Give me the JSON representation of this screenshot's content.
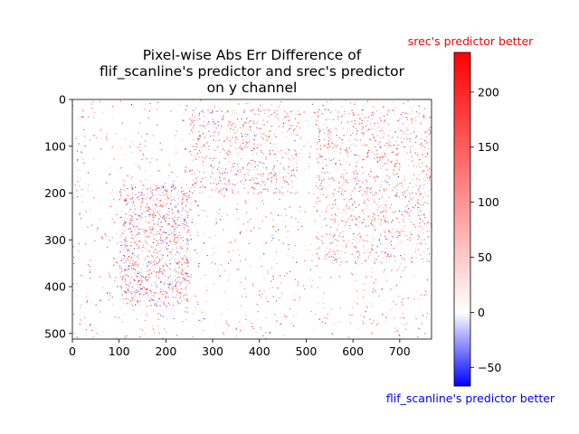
{
  "chart_data": {
    "type": "heatmap",
    "title_lines": [
      "Pixel-wise Abs Err Difference of",
      "flif_scanline's predictor and srec's predictor",
      "on y channel"
    ],
    "image": {
      "x_range": [
        0,
        768
      ],
      "y_range": [
        0,
        512
      ],
      "x_ticks": [
        0,
        100,
        200,
        300,
        400,
        500,
        600,
        700
      ],
      "y_ticks": [
        0,
        100,
        200,
        300,
        400,
        500
      ],
      "y_inverted": true
    },
    "colorbar": {
      "colormap": "bwr",
      "vmin": -67,
      "vmax": 236,
      "ticks": [
        -50,
        0,
        50,
        100,
        150,
        200
      ],
      "top_label": "srec's predictor better",
      "bottom_label": "flif_scanline's predictor better",
      "top_label_color": "#ff0000",
      "bottom_label_color": "#0000ff"
    }
  }
}
